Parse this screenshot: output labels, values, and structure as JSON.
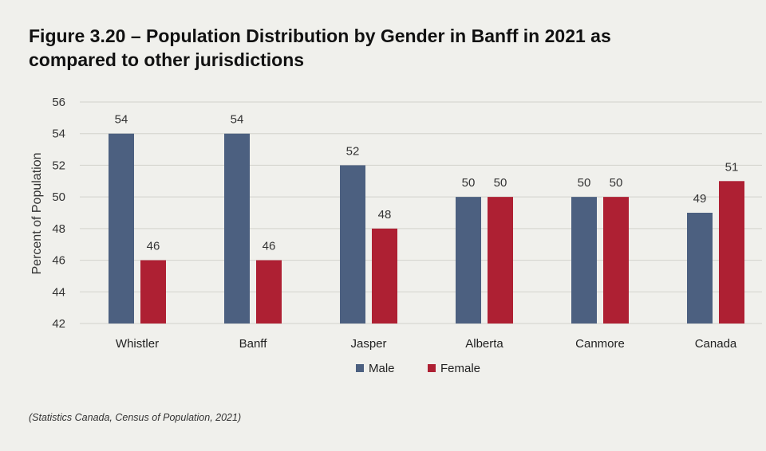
{
  "title_line1": "Figure 3.20 – Population Distribution by Gender in Banff in 2021 as",
  "title_line2": "compared to other jurisdictions",
  "caption": "(Statistics Canada, Census of Population, 2021)",
  "colors": {
    "male": "#4c6080",
    "female": "#ae2033",
    "grid": "#d2d2cc",
    "axis_text": "#333333"
  },
  "chart_data": {
    "type": "bar",
    "categories": [
      "Whistler",
      "Banff",
      "Jasper",
      "Alberta",
      "Canmore",
      "Canada"
    ],
    "series": [
      {
        "name": "Male",
        "values": [
          54,
          54,
          52,
          50,
          50,
          49
        ]
      },
      {
        "name": "Female",
        "values": [
          46,
          46,
          48,
          50,
          50,
          51
        ]
      }
    ],
    "ylabel": "Percent of Population",
    "xlabel": "",
    "ylim": [
      42,
      56
    ],
    "yticks": [
      42,
      44,
      46,
      48,
      50,
      52,
      54,
      56
    ],
    "grid": true,
    "legend_position": "bottom-center",
    "data_labels": true
  }
}
